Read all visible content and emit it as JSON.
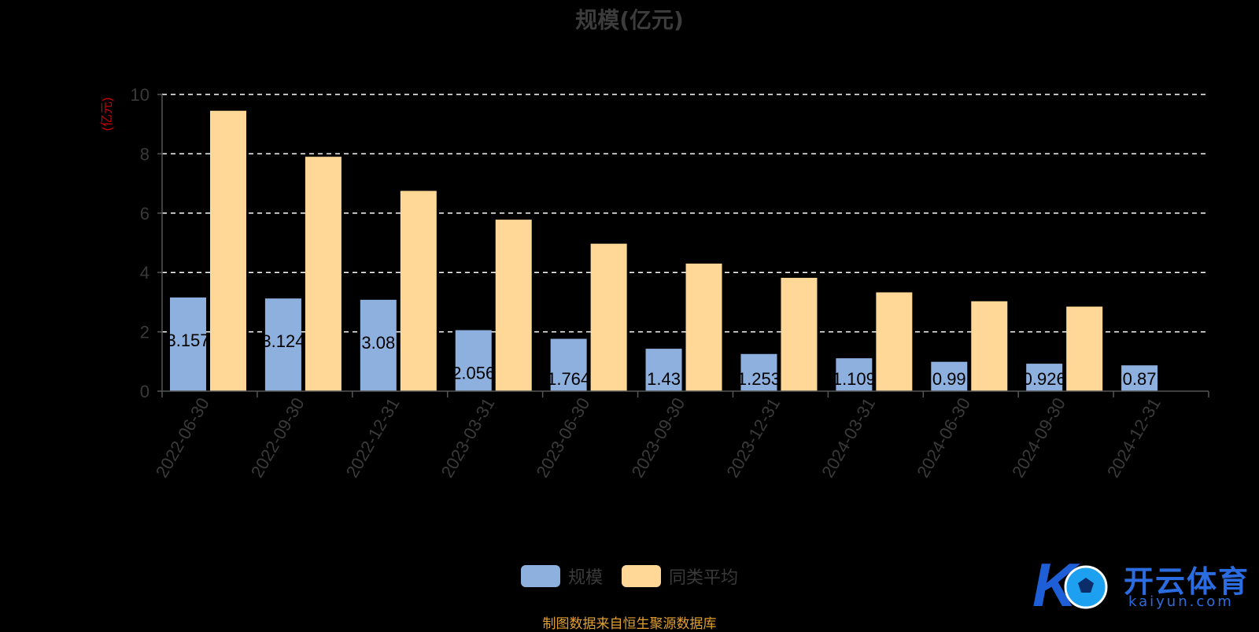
{
  "chart_data": {
    "type": "bar",
    "title": "规模(亿元)",
    "ylabel": "(亿元)",
    "xlabel": "",
    "categories": [
      "2022-06-30",
      "2022-09-30",
      "2022-12-31",
      "2023-03-31",
      "2023-06-30",
      "2023-09-30",
      "2023-12-31",
      "2024-03-31",
      "2024-06-30",
      "2024-09-30",
      "2024-12-31"
    ],
    "series": [
      {
        "name": "规模",
        "color": "#8eb0de",
        "values": [
          3.157,
          3.124,
          3.08,
          2.056,
          1.764,
          1.43,
          1.253,
          1.109,
          0.99,
          0.926,
          0.87
        ],
        "labels": [
          "3.157",
          "3.124",
          "3.08",
          "2.056",
          "1.764",
          "1.43",
          "1.253",
          "1.109",
          "0.99",
          "0.926",
          "0.87"
        ]
      },
      {
        "name": "同类平均",
        "color": "#ffd898",
        "values": [
          9.45,
          7.9,
          6.75,
          5.78,
          4.97,
          4.3,
          3.82,
          3.33,
          3.03,
          2.85,
          null
        ]
      }
    ],
    "ylim": [
      0,
      10
    ],
    "yticks": [
      0,
      2,
      4,
      6,
      8,
      10
    ],
    "grid": true,
    "legend": "bottom-center",
    "colors": {
      "axis": "#555555",
      "tick_text": "#3a3a3a",
      "grid": "#ffffff",
      "ylabel": "#cc0000"
    }
  },
  "footer": {
    "source": "制图数据来自恒生聚源数据库"
  },
  "watermark": {
    "title": "开云体育",
    "subtitle": "kaiyun.com"
  }
}
